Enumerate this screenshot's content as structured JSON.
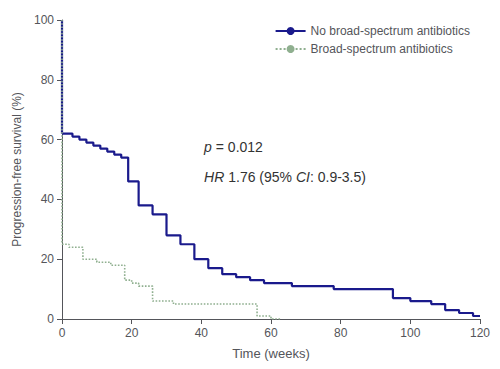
{
  "chart_data": {
    "type": "step",
    "xlabel": "Time (weeks)",
    "ylabel": "Progression-free survival (%)",
    "xlim": [
      0,
      120
    ],
    "ylim": [
      0,
      100
    ],
    "xticks": [
      0,
      20,
      40,
      60,
      80,
      100,
      120
    ],
    "yticks": [
      0,
      20,
      40,
      60,
      80,
      100
    ],
    "grid": false,
    "legend": "upper right",
    "series": [
      {
        "name": "No broad-spectrum antibiotics",
        "color": "#1a1a8c",
        "line_style": "solid",
        "drop_x": [
          0,
          0
        ],
        "drop_values": [
          100,
          62
        ],
        "x": [
          0,
          3,
          3,
          5,
          5,
          7,
          7,
          9,
          9,
          11,
          11,
          13,
          13,
          15,
          15,
          17,
          17,
          19,
          19,
          22,
          22,
          26,
          26,
          30,
          30,
          34,
          34,
          38,
          38,
          42,
          42,
          46,
          46,
          50,
          50,
          54,
          54,
          58,
          58,
          62,
          62,
          66,
          66,
          70,
          70,
          78,
          78,
          86,
          86,
          90,
          90,
          95,
          95,
          100,
          100,
          106,
          106,
          110,
          110,
          114,
          114,
          118,
          118,
          120
        ],
        "values": [
          62,
          62,
          61,
          61,
          60,
          60,
          59,
          59,
          58,
          58,
          57,
          57,
          56,
          56,
          55,
          55,
          54,
          54,
          46,
          46,
          38,
          38,
          35,
          35,
          28,
          28,
          25,
          25,
          20,
          20,
          17,
          17,
          15,
          15,
          14,
          14,
          13,
          13,
          12,
          12,
          12,
          12,
          11,
          11,
          11,
          11,
          10,
          10,
          10,
          10,
          10,
          10,
          7,
          7,
          6,
          6,
          5,
          5,
          3,
          3,
          2,
          2,
          1,
          1
        ]
      },
      {
        "name": "Broad-spectrum antibiotics",
        "color": "#8faf8f",
        "line_style": "dotted",
        "drop_x": [
          0,
          0
        ],
        "drop_values": [
          100,
          25
        ],
        "x": [
          0,
          2,
          2,
          6,
          6,
          10,
          10,
          14,
          14,
          18,
          18,
          20,
          20,
          22,
          22,
          26,
          26,
          32,
          32,
          36,
          36,
          40,
          40,
          44,
          44,
          48,
          48,
          52,
          52,
          56,
          56,
          60,
          60,
          63
        ],
        "values": [
          25,
          25,
          24,
          24,
          20,
          20,
          19,
          19,
          18,
          18,
          13,
          13,
          12,
          12,
          11,
          11,
          6,
          6,
          5,
          5,
          5,
          5,
          5,
          5,
          5,
          5,
          5,
          5,
          5,
          5,
          1,
          1,
          0,
          0
        ]
      }
    ],
    "annotations": [
      {
        "parts": [
          {
            "text": "p",
            "italic": true
          },
          {
            "text": " = 0.012",
            "italic": false
          }
        ]
      },
      {
        "parts": [
          {
            "text": "HR",
            "italic": true
          },
          {
            "text": " 1.76 (95% ",
            "italic": false
          },
          {
            "text": "CI",
            "italic": true
          },
          {
            "text": ": 0.9-3.5)",
            "italic": false
          }
        ]
      }
    ]
  }
}
